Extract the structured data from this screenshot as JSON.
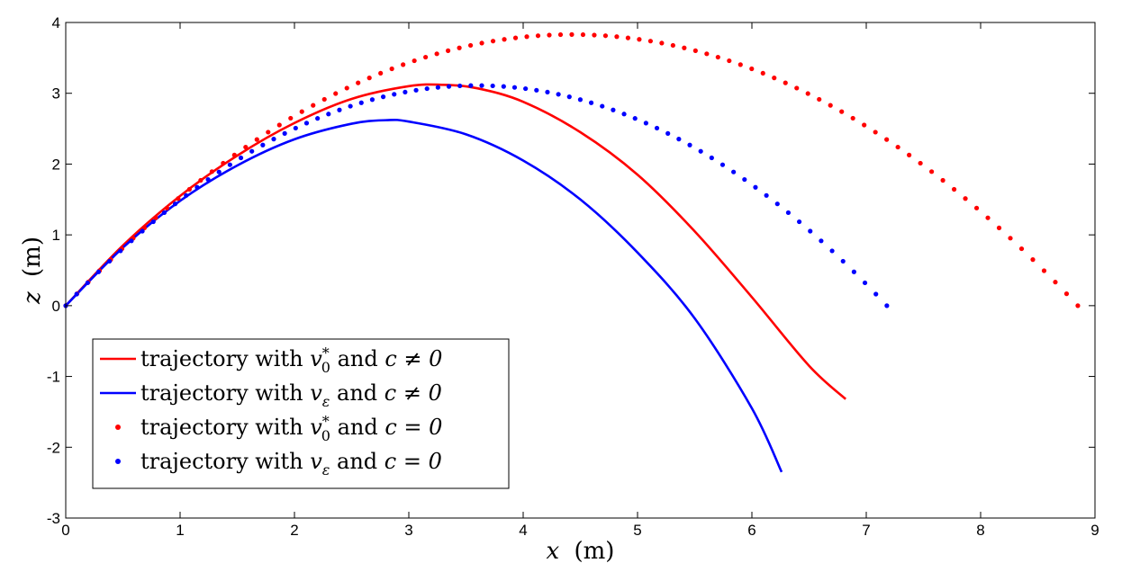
{
  "chart_data": {
    "type": "line",
    "xlabel": {
      "var": "x",
      "unit": "(m)"
    },
    "ylabel": {
      "var": "z",
      "unit": "(m)"
    },
    "xlim": [
      0,
      9
    ],
    "ylim": [
      -3,
      4
    ],
    "xticks": [
      "0",
      "1",
      "2",
      "3",
      "4",
      "5",
      "6",
      "7",
      "8",
      "9"
    ],
    "yticks": [
      "-3",
      "-2",
      "-1",
      "0",
      "1",
      "2",
      "3",
      "4"
    ],
    "grid": false,
    "legend_position": "lower-left",
    "series": [
      {
        "name": "trajectory with v0* and c ≠ 0",
        "legend": {
          "pre": "trajectory with ",
          "var": "v",
          "sub": "0",
          "sup": "*",
          "mid": " and ",
          "cond": "c ≠ 0"
        },
        "style": "line",
        "color": "#ff0000",
        "x": [
          0,
          0.5,
          1.0,
          1.5,
          2.0,
          2.5,
          3.0,
          3.3,
          3.6,
          4.0,
          4.5,
          5.0,
          5.5,
          6.0,
          6.5,
          6.82
        ],
        "y": [
          0,
          0.85,
          1.55,
          2.12,
          2.58,
          2.92,
          3.1,
          3.12,
          3.07,
          2.88,
          2.45,
          1.85,
          1.05,
          0.12,
          -0.85,
          -1.32
        ]
      },
      {
        "name": "trajectory with vε and c ≠ 0",
        "legend": {
          "pre": "trajectory with ",
          "var": "v",
          "sub": "ε",
          "sup": "",
          "mid": " and ",
          "cond": "c ≠ 0"
        },
        "style": "line",
        "color": "#0000ff",
        "x": [
          0,
          0.5,
          1.0,
          1.5,
          2.0,
          2.5,
          2.8,
          3.0,
          3.5,
          4.0,
          4.5,
          5.0,
          5.5,
          6.0,
          6.26
        ],
        "y": [
          0,
          0.82,
          1.48,
          1.98,
          2.35,
          2.57,
          2.62,
          2.6,
          2.42,
          2.05,
          1.5,
          0.75,
          -0.18,
          -1.45,
          -2.35
        ]
      },
      {
        "name": "trajectory with v0* and c = 0",
        "legend": {
          "pre": "trajectory with ",
          "var": "v",
          "sub": "0",
          "sup": "*",
          "mid": " and ",
          "cond": "c = 0"
        },
        "style": "markers",
        "color": "#ff0000",
        "vertex_x": 4.425,
        "peak": 3.83,
        "range": 8.85,
        "count": 90
      },
      {
        "name": "trajectory with vε and c = 0",
        "legend": {
          "pre": "trajectory with ",
          "var": "v",
          "sub": "ε",
          "sup": "",
          "mid": " and ",
          "cond": "c = 0"
        },
        "style": "markers",
        "color": "#0000ff",
        "vertex_x": 3.59,
        "peak": 3.11,
        "range": 7.18,
        "count": 75
      }
    ]
  }
}
